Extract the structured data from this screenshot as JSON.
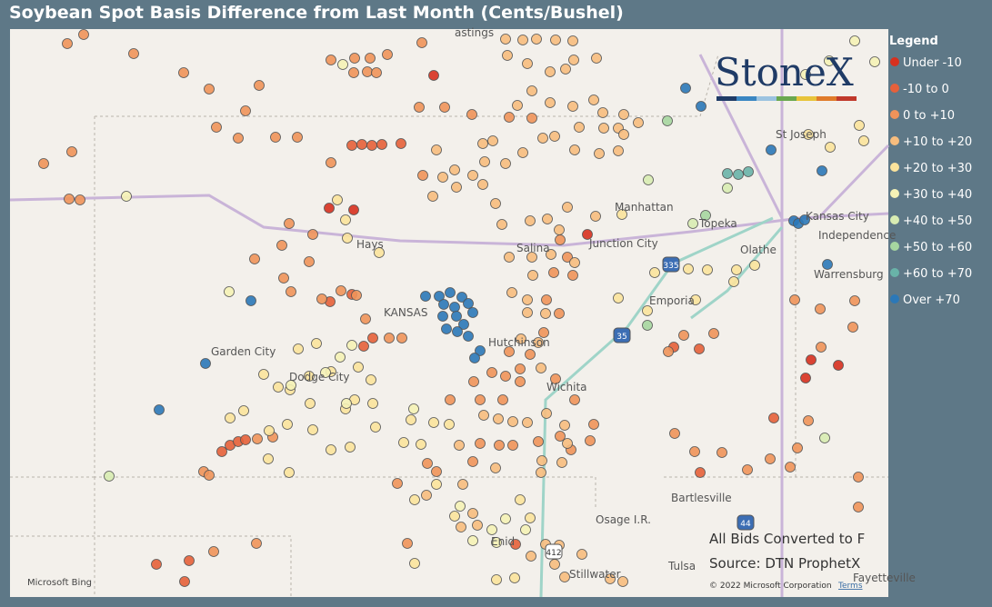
{
  "header": {
    "title": "Soybean Spot Basis Difference from Last Month (Cents/Bushel)"
  },
  "legend": {
    "title": "Legend",
    "items": [
      {
        "label": "Under -10",
        "color": "#d7301f"
      },
      {
        "label": "-10 to 0",
        "color": "#e6603a"
      },
      {
        "label": "0 to +10",
        "color": "#f0935a"
      },
      {
        "label": "+10 to +20",
        "color": "#f7bd7e"
      },
      {
        "label": "+20 to +30",
        "color": "#fbe39c"
      },
      {
        "label": "+30 to +40",
        "color": "#f5f2b6"
      },
      {
        "label": "+40 to +50",
        "color": "#d8ecb2"
      },
      {
        "label": "+50 to +60",
        "color": "#a6d6a0"
      },
      {
        "label": "+60 to +70",
        "color": "#69b3a8"
      },
      {
        "label": "Over +70",
        "color": "#2b78b8"
      }
    ]
  },
  "logo": "StoneX",
  "map": {
    "places": [
      "astings",
      "St Joseph",
      "Manhattan",
      "Topeka",
      "Kansas City",
      "Independence",
      "Hays",
      "Salina",
      "Junction City",
      "Olathe",
      "KANSAS",
      "Emporia",
      "Warrensburg",
      "Garden City",
      "Hutchinson",
      "Dodge City",
      "Wichita",
      "Bartlesville",
      "Osage I.R.",
      "Enid",
      "Stillwater",
      "Tulsa",
      "Fayetteville"
    ],
    "shields": [
      "335",
      "35",
      "44",
      "412"
    ],
    "attribution": "Microsoft Bing",
    "copyright": "© 2022 Microsoft Corporation",
    "terms": "Terms"
  },
  "notes": [
    "All Bids Converted to F",
    "Source: DTN ProphetX"
  ]
}
